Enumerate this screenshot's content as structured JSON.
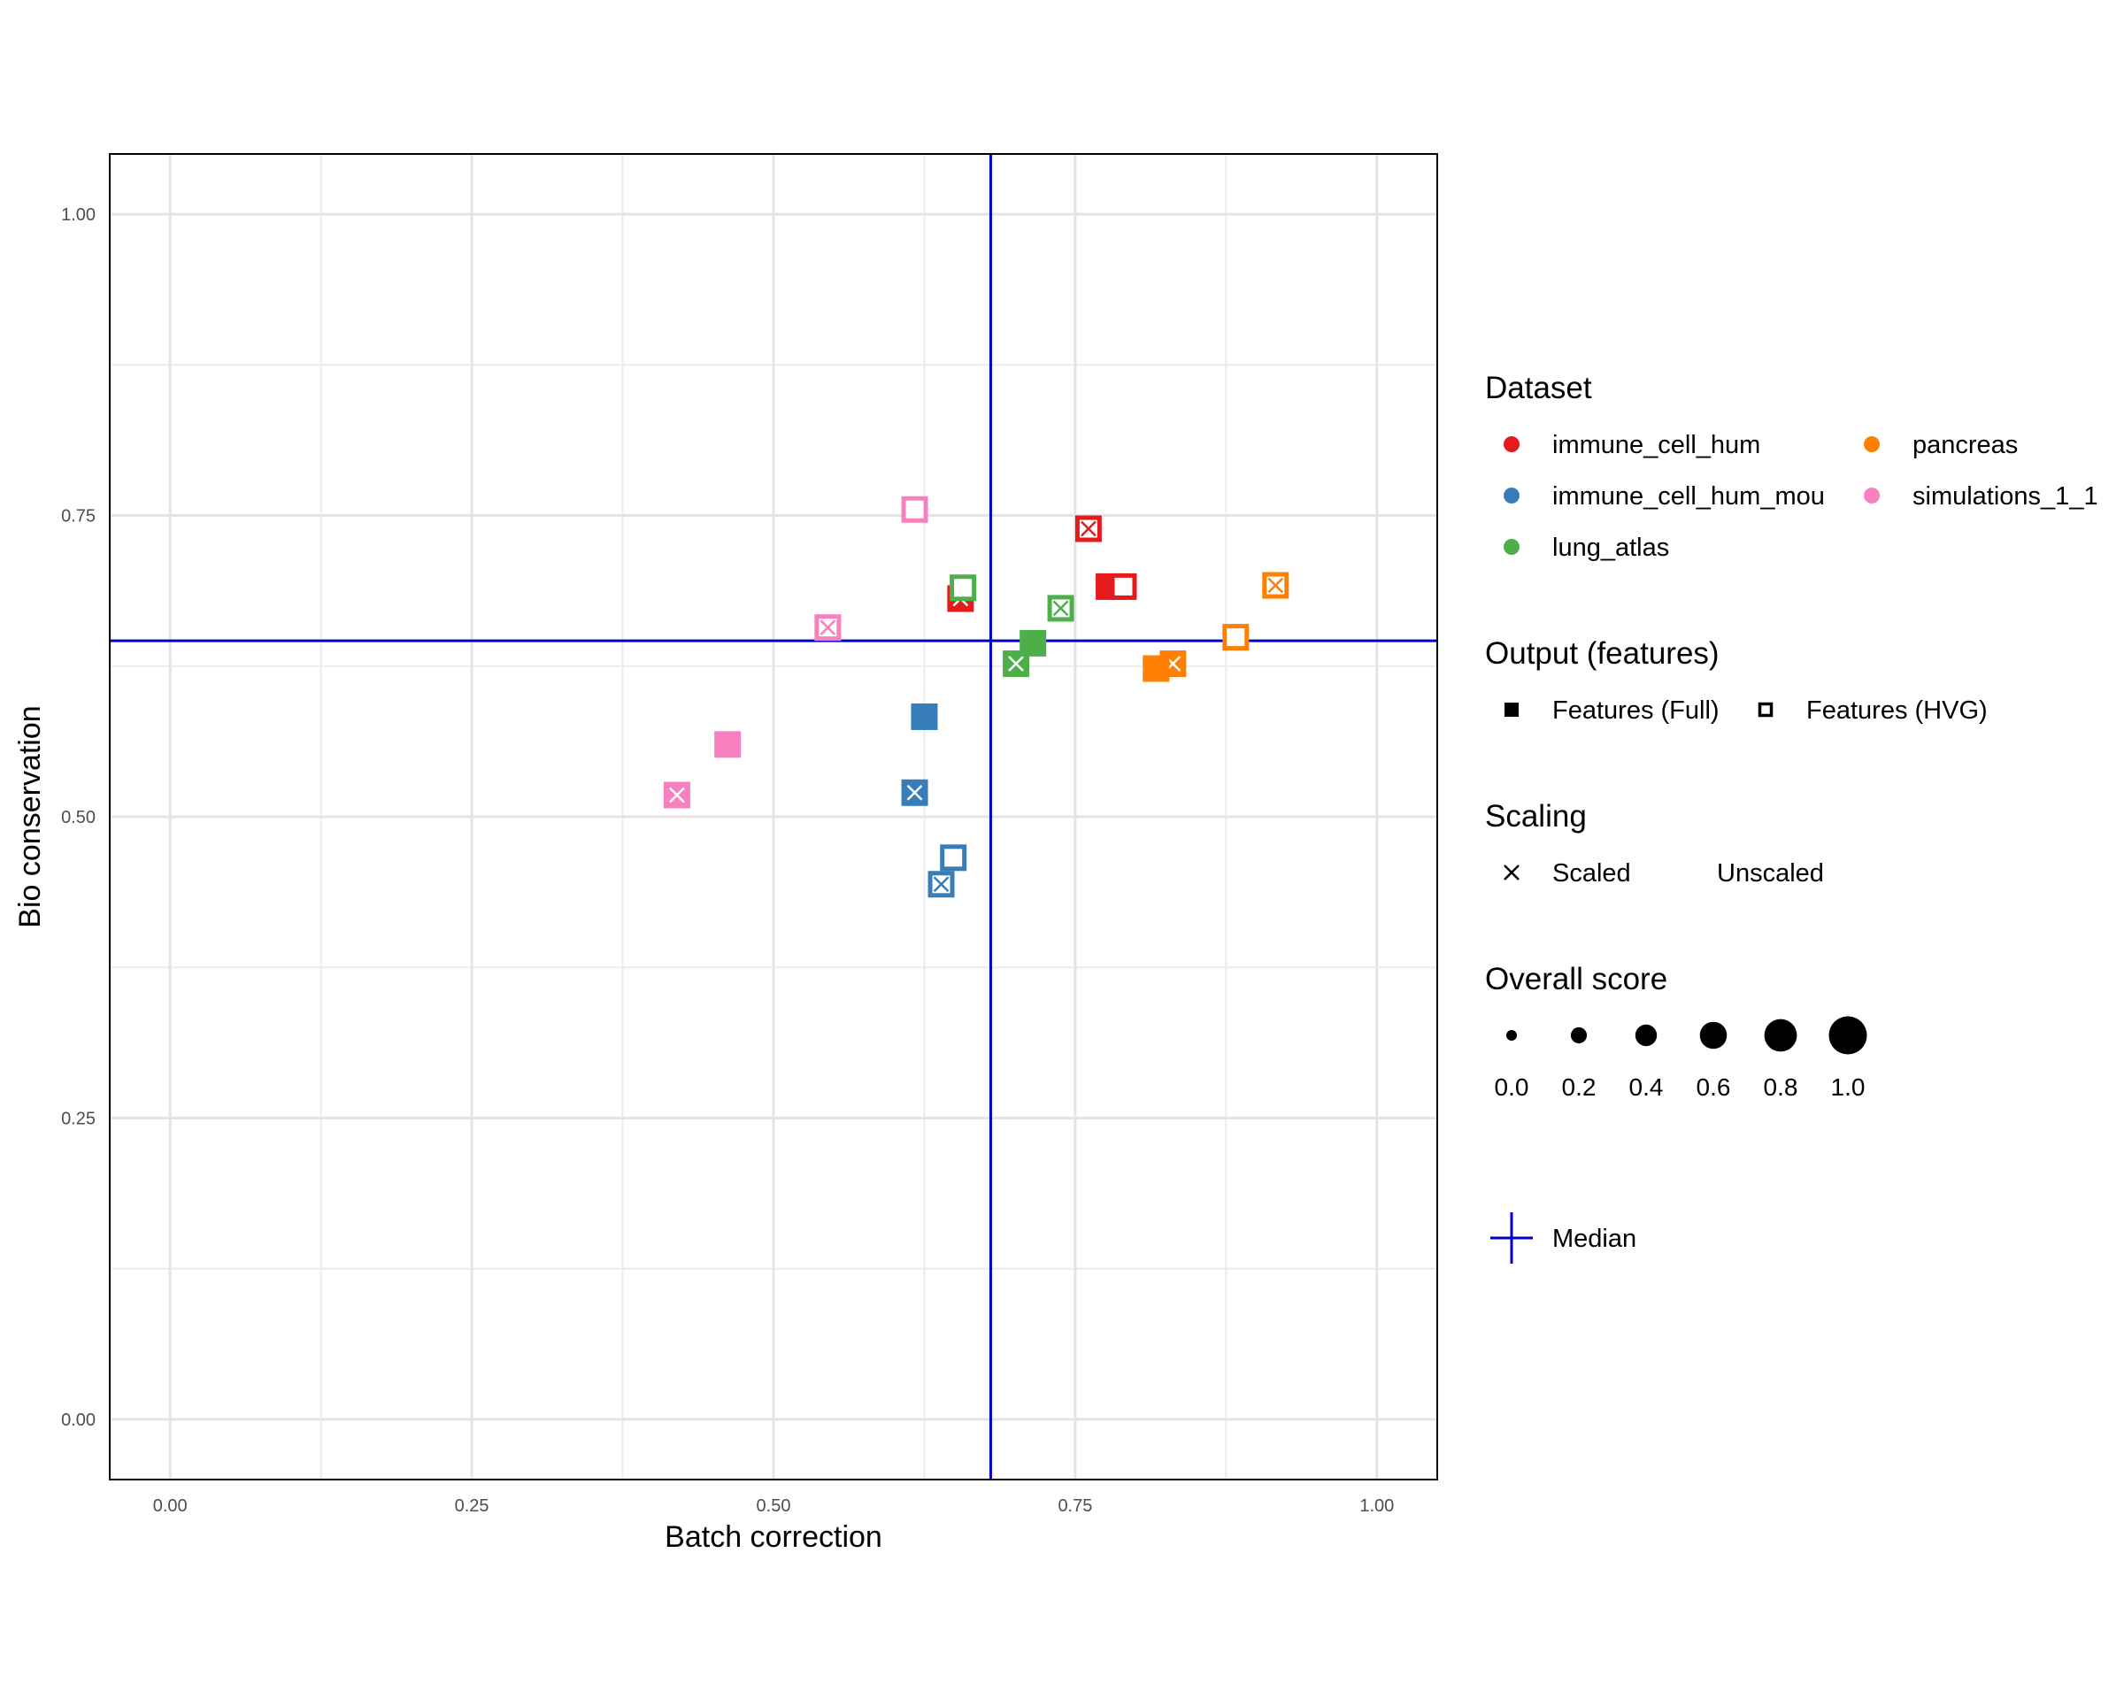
{
  "chart_data": {
    "type": "scatter",
    "xlabel": "Batch correction",
    "ylabel": "Bio conservation",
    "xlim": [
      -0.05,
      1.05
    ],
    "ylim": [
      -0.05,
      1.05
    ],
    "x_ticks": [
      0.0,
      0.25,
      0.5,
      0.75,
      1.0
    ],
    "y_ticks": [
      0.0,
      0.25,
      0.5,
      0.75,
      1.0
    ],
    "x_tick_labels": [
      "0.00",
      "0.25",
      "0.50",
      "0.75",
      "1.00"
    ],
    "y_tick_labels": [
      "0.00",
      "0.25",
      "0.50",
      "0.75",
      "1.00"
    ],
    "grid": true,
    "median": {
      "x": 0.68,
      "y": 0.646,
      "color": "#0000CD"
    },
    "points": [
      {
        "dataset": "immune_cell_hum",
        "output": "Full",
        "scaling": "Scaled",
        "x": 0.655,
        "y": 0.681
      },
      {
        "dataset": "immune_cell_hum",
        "output": "Full",
        "scaling": "Unscaled",
        "x": 0.778,
        "y": 0.691
      },
      {
        "dataset": "immune_cell_hum",
        "output": "HVG",
        "scaling": "Scaled",
        "x": 0.761,
        "y": 0.739
      },
      {
        "dataset": "immune_cell_hum",
        "output": "HVG",
        "scaling": "Unscaled",
        "x": 0.79,
        "y": 0.691
      },
      {
        "dataset": "immune_cell_hum_mou",
        "output": "Full",
        "scaling": "Scaled",
        "x": 0.617,
        "y": 0.52
      },
      {
        "dataset": "immune_cell_hum_mou",
        "output": "Full",
        "scaling": "Unscaled",
        "x": 0.625,
        "y": 0.583
      },
      {
        "dataset": "immune_cell_hum_mou",
        "output": "HVG",
        "scaling": "Scaled",
        "x": 0.639,
        "y": 0.444
      },
      {
        "dataset": "immune_cell_hum_mou",
        "output": "HVG",
        "scaling": "Unscaled",
        "x": 0.649,
        "y": 0.466
      },
      {
        "dataset": "lung_atlas",
        "output": "Full",
        "scaling": "Scaled",
        "x": 0.701,
        "y": 0.627
      },
      {
        "dataset": "lung_atlas",
        "output": "Full",
        "scaling": "Unscaled",
        "x": 0.715,
        "y": 0.644
      },
      {
        "dataset": "lung_atlas",
        "output": "HVG",
        "scaling": "Scaled",
        "x": 0.738,
        "y": 0.673
      },
      {
        "dataset": "lung_atlas",
        "output": "HVG",
        "scaling": "Unscaled",
        "x": 0.657,
        "y": 0.69
      },
      {
        "dataset": "pancreas",
        "output": "Full",
        "scaling": "Scaled",
        "x": 0.831,
        "y": 0.627
      },
      {
        "dataset": "pancreas",
        "output": "Full",
        "scaling": "Unscaled",
        "x": 0.817,
        "y": 0.623
      },
      {
        "dataset": "pancreas",
        "output": "HVG",
        "scaling": "Scaled",
        "x": 0.916,
        "y": 0.692
      },
      {
        "dataset": "pancreas",
        "output": "HVG",
        "scaling": "Unscaled",
        "x": 0.883,
        "y": 0.649
      },
      {
        "dataset": "simulations_1_1",
        "output": "Full",
        "scaling": "Scaled",
        "x": 0.42,
        "y": 0.518
      },
      {
        "dataset": "simulations_1_1",
        "output": "Full",
        "scaling": "Unscaled",
        "x": 0.462,
        "y": 0.56
      },
      {
        "dataset": "simulations_1_1",
        "output": "HVG",
        "scaling": "Scaled",
        "x": 0.545,
        "y": 0.657
      },
      {
        "dataset": "simulations_1_1",
        "output": "HVG",
        "scaling": "Unscaled",
        "x": 0.617,
        "y": 0.755
      }
    ],
    "legend": {
      "placement": "right",
      "dataset": {
        "title": "Dataset",
        "items": [
          {
            "label": "immune_cell_hum",
            "color": "#E41A1C"
          },
          {
            "label": "immune_cell_hum_mou",
            "color": "#377EB8"
          },
          {
            "label": "lung_atlas",
            "color": "#4DAF4A"
          },
          {
            "label": "pancreas",
            "color": "#FF7F00"
          },
          {
            "label": "simulations_1_1",
            "color": "#F781BF"
          }
        ]
      },
      "output": {
        "title": "Output (features)",
        "items": [
          {
            "key": "Full",
            "label": "Features (Full)"
          },
          {
            "key": "HVG",
            "label": "Features (HVG)"
          }
        ]
      },
      "scaling": {
        "title": "Scaling",
        "items": [
          {
            "key": "Scaled",
            "label": "Scaled"
          },
          {
            "key": "Unscaled",
            "label": "Unscaled"
          }
        ]
      },
      "overall_score": {
        "title": "Overall score",
        "values": [
          0.0,
          0.2,
          0.4,
          0.6,
          0.8,
          1.0
        ],
        "labels": [
          "0.0",
          "0.2",
          "0.4",
          "0.6",
          "0.8",
          "1.0"
        ]
      },
      "median_label": "Median"
    }
  }
}
